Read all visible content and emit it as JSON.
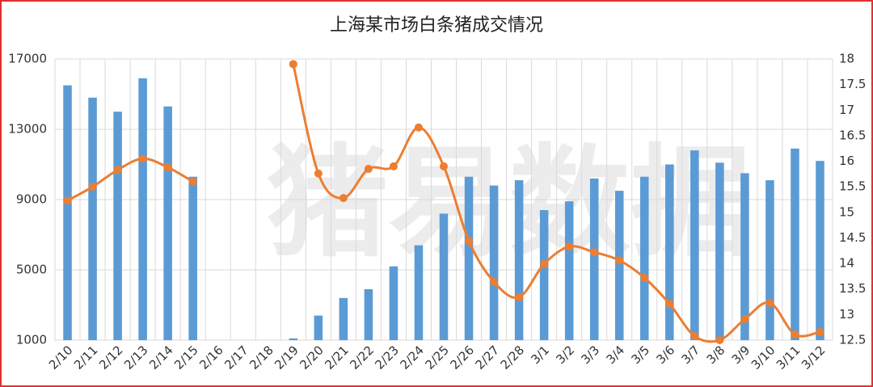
{
  "chart_data": {
    "type": "bar-line",
    "title": "上海某市场白条猪成交情况",
    "watermark": "猪易数据",
    "categories": [
      "2/10",
      "2/11",
      "2/12",
      "2/13",
      "2/14",
      "2/15",
      "2/16",
      "2/17",
      "2/18",
      "2/19",
      "2/20",
      "2/21",
      "2/22",
      "2/23",
      "2/24",
      "2/25",
      "2/26",
      "2/27",
      "2/28",
      "3/1",
      "3/2",
      "3/3",
      "3/4",
      "3/5",
      "3/6",
      "3/7",
      "3/8",
      "3/9",
      "3/10",
      "3/11",
      "3/12"
    ],
    "series": [
      {
        "type": "bar",
        "color": "#5b9bd5",
        "values": [
          15500,
          14800,
          14000,
          15900,
          14300,
          10300,
          null,
          null,
          null,
          1100,
          2400,
          3400,
          3900,
          5200,
          6400,
          8200,
          10300,
          9800,
          10100,
          8400,
          8900,
          10200,
          9500,
          10300,
          11000,
          11800,
          11100,
          10500,
          10100,
          11900,
          11200
        ]
      },
      {
        "type": "line",
        "axis": "y2",
        "color": "#ed7d31",
        "values": [
          15.23,
          15.5,
          15.83,
          16.05,
          15.88,
          15.6,
          null,
          null,
          null,
          17.9,
          15.76,
          15.28,
          15.85,
          15.9,
          16.66,
          15.9,
          14.44,
          13.64,
          13.34,
          13.99,
          14.33,
          14.22,
          14.06,
          13.72,
          13.21,
          12.58,
          12.5,
          12.91,
          13.23,
          12.61,
          12.66
        ]
      }
    ],
    "ylim": [
      1000,
      17000
    ],
    "yticks": [
      1000,
      5000,
      9000,
      13000,
      17000
    ],
    "y2lim": [
      12.5,
      18
    ],
    "y2ticks": [
      12.5,
      13,
      13.5,
      14,
      14.5,
      15,
      15.5,
      16,
      16.5,
      17,
      17.5,
      18
    ],
    "grid": true
  }
}
